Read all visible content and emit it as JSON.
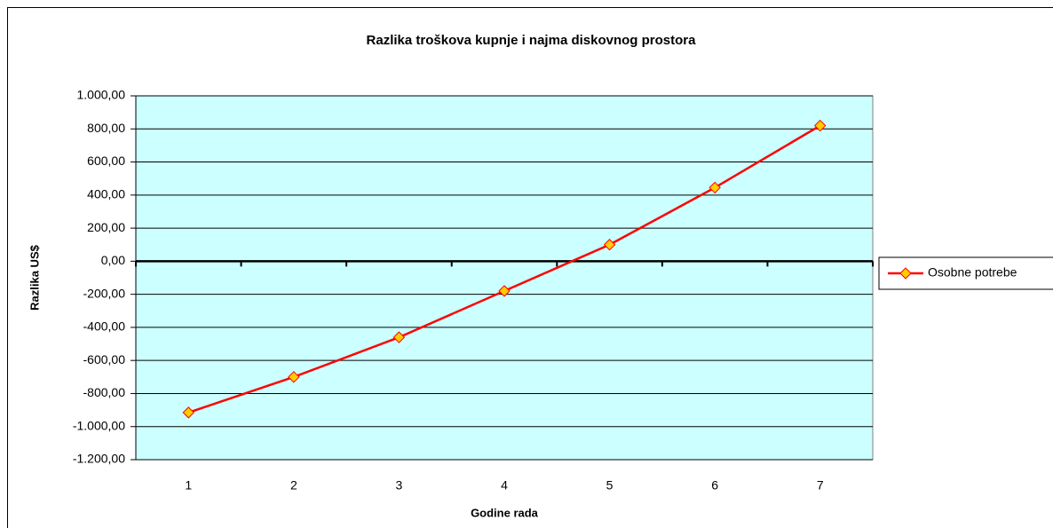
{
  "chart_data": {
    "type": "line",
    "title": "Razlika troškova kupnje i najma diskovnog prostora",
    "xlabel": "Godine rada",
    "ylabel": "Razlika US$",
    "categories": [
      "1",
      "2",
      "3",
      "4",
      "5",
      "6",
      "7"
    ],
    "series": [
      {
        "name": "Osobne potrebe",
        "color": "#ff0000",
        "marker_color": "#ffcc00",
        "values": [
          -915,
          -700,
          -460,
          -180,
          100,
          445,
          820
        ]
      }
    ],
    "ylim": [
      -1200,
      1000
    ],
    "yticks": [
      {
        "value": -1200,
        "label": "-1.200,00"
      },
      {
        "value": -1000,
        "label": "-1.000,00"
      },
      {
        "value": -800,
        "label": "-800,00"
      },
      {
        "value": -600,
        "label": "-600,00"
      },
      {
        "value": -400,
        "label": "-400,00"
      },
      {
        "value": -200,
        "label": "-200,00"
      },
      {
        "value": 0,
        "label": "0,00"
      },
      {
        "value": 200,
        "label": "200,00"
      },
      {
        "value": 400,
        "label": "400,00"
      },
      {
        "value": 600,
        "label": "600,00"
      },
      {
        "value": 800,
        "label": "800,00"
      },
      {
        "value": 1000,
        "label": "1.000,00"
      }
    ],
    "grid": true,
    "plot_background": "#ccffff",
    "legend": "right"
  }
}
